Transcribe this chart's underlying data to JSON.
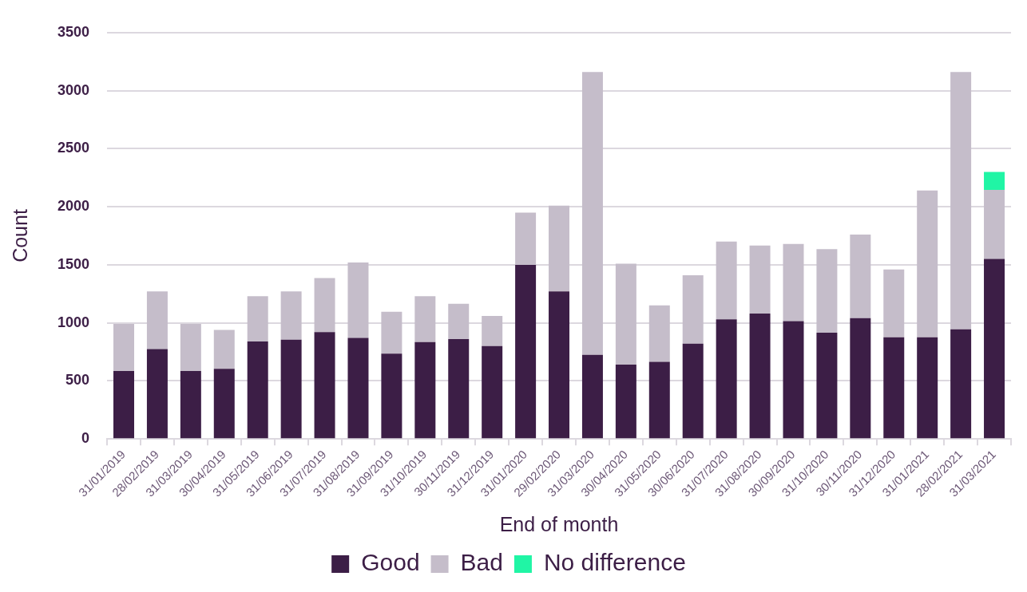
{
  "chart_data": {
    "type": "bar",
    "xlabel": "End of month",
    "ylabel": "Count",
    "stacked": true,
    "legend": "bottom",
    "grid": "y",
    "categories": [
      "31/01/2019",
      "28/02/2019",
      "31/03/2019",
      "30/04/2019",
      "31/05/2019",
      "31/06/2019",
      "31/07/2019",
      "31/08/2019",
      "31/09/2019",
      "31/10/2019",
      "30/11/2019",
      "31/12/2019",
      "31/01/2020",
      "29/02/2020",
      "31/03/2020",
      "30/04/2020",
      "31/05/2020",
      "30/06/2020",
      "31/07/2020",
      "31/08/2020",
      "30/09/2020",
      "31/10/2020",
      "30/11/2020",
      "31/12/2020",
      "31/01/2021",
      "28/02/2021",
      "31/03/2021"
    ],
    "series": [
      {
        "name": "Good",
        "color": "#3c1e46",
        "values": [
          585,
          775,
          585,
          605,
          840,
          855,
          920,
          870,
          735,
          835,
          860,
          800,
          1500,
          1270,
          725,
          640,
          665,
          820,
          1030,
          1080,
          1015,
          915,
          1040,
          875,
          875,
          945,
          1550
        ]
      },
      {
        "name": "Bad",
        "color": "#c5bdca",
        "values": [
          405,
          495,
          405,
          335,
          390,
          415,
          465,
          650,
          360,
          395,
          305,
          260,
          450,
          740,
          2435,
          870,
          485,
          590,
          670,
          585,
          665,
          720,
          720,
          585,
          1265,
          2215,
          595
        ]
      },
      {
        "name": "No difference",
        "color": "#20f5a5",
        "values": [
          null,
          null,
          null,
          null,
          null,
          null,
          null,
          null,
          null,
          null,
          null,
          null,
          null,
          null,
          null,
          null,
          null,
          null,
          null,
          null,
          null,
          null,
          null,
          null,
          null,
          null,
          155
        ]
      }
    ],
    "ylim": [
      0,
      3500
    ],
    "yticks": [
      0,
      500,
      1000,
      1500,
      2000,
      2500,
      3000,
      3500
    ]
  }
}
